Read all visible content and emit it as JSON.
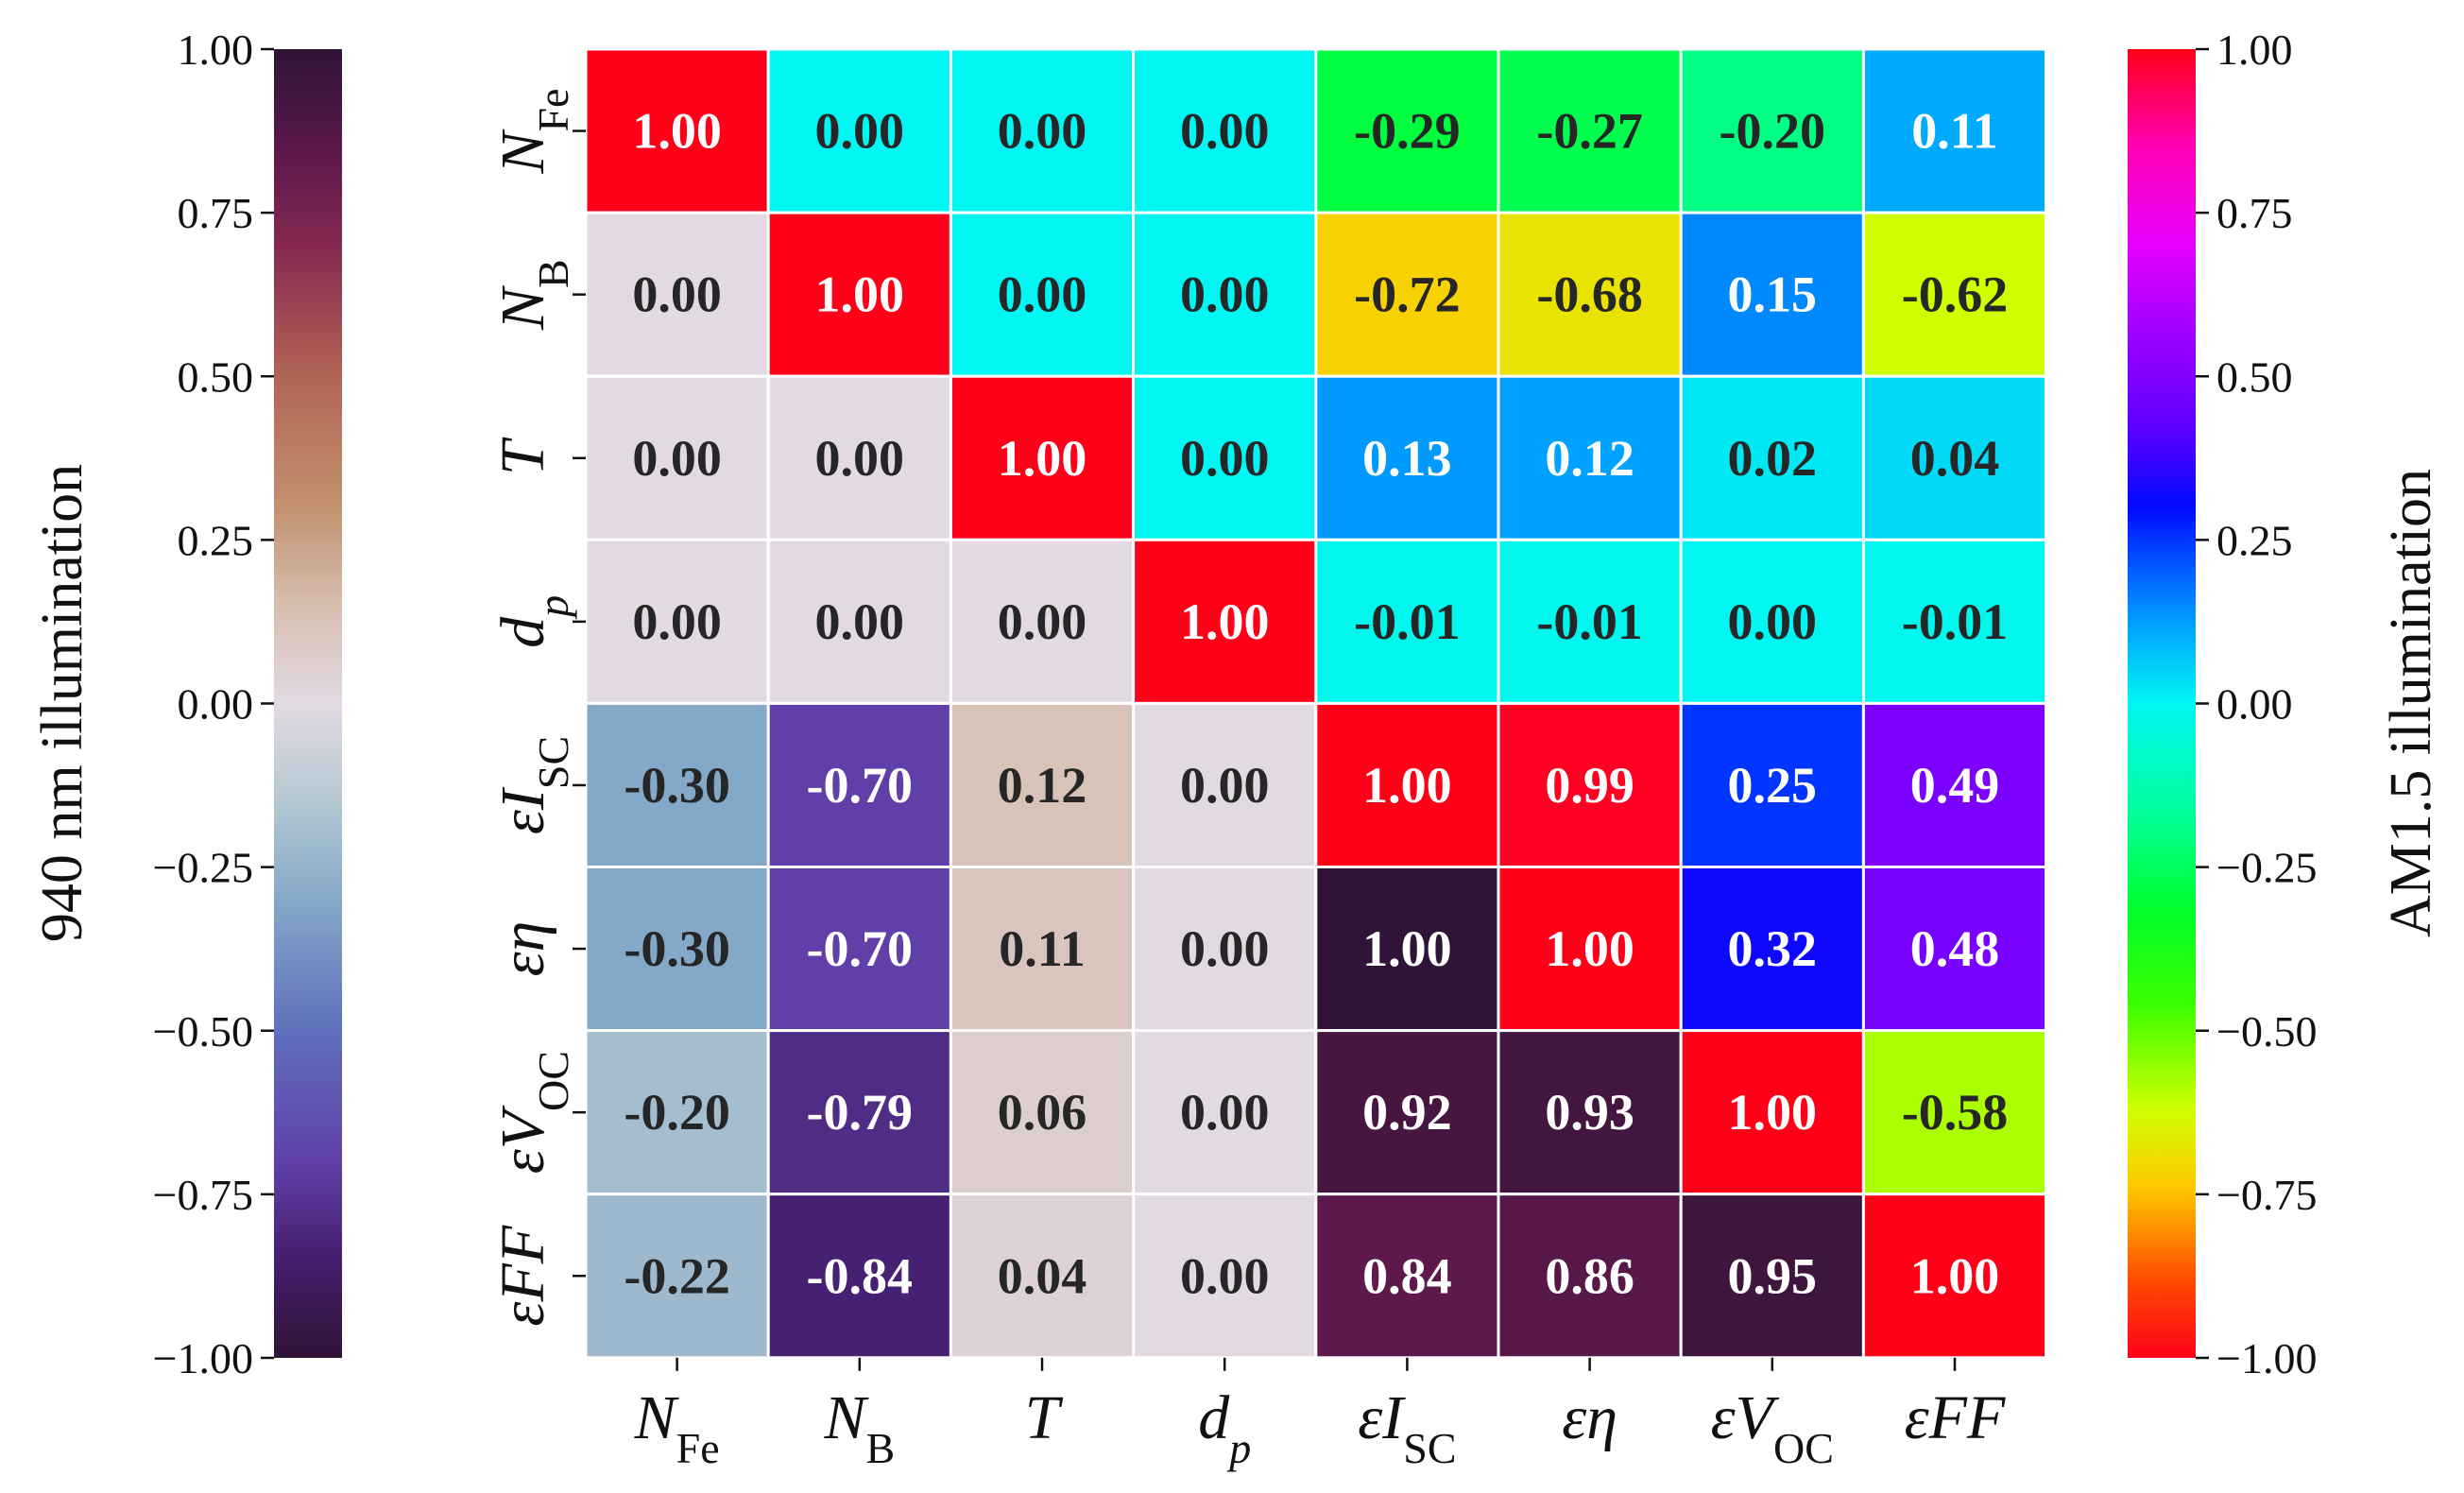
{
  "chart_data": {
    "type": "heatmap",
    "variables": [
      {
        "id": "NFe",
        "base": "N",
        "sub": "Fe",
        "prefix": ""
      },
      {
        "id": "NB",
        "base": "N",
        "sub": "B",
        "prefix": ""
      },
      {
        "id": "T",
        "base": "T",
        "sub": "",
        "prefix": ""
      },
      {
        "id": "dp",
        "base": "d",
        "sub": "p",
        "prefix": "",
        "sub_italic": true
      },
      {
        "id": "eIsc",
        "base": "I",
        "sub": "SC",
        "prefix": "ε"
      },
      {
        "id": "eEta",
        "base": "η",
        "sub": "",
        "prefix": "ε"
      },
      {
        "id": "eVoc",
        "base": "V",
        "sub": "OC",
        "prefix": "ε"
      },
      {
        "id": "eFF",
        "base": "FF",
        "sub": "",
        "prefix": "ε"
      }
    ],
    "values": [
      [
        1.0,
        0.0,
        0.0,
        0.0,
        -0.29,
        -0.27,
        -0.2,
        0.11
      ],
      [
        0.0,
        1.0,
        0.0,
        0.0,
        -0.72,
        -0.68,
        0.15,
        -0.62
      ],
      [
        0.0,
        0.0,
        1.0,
        0.0,
        0.13,
        0.12,
        0.02,
        0.04
      ],
      [
        0.0,
        0.0,
        0.0,
        1.0,
        -0.01,
        -0.01,
        0.0,
        -0.01
      ],
      [
        -0.3,
        -0.7,
        0.12,
        0.0,
        1.0,
        0.99,
        0.25,
        0.49
      ],
      [
        -0.3,
        -0.7,
        0.11,
        0.0,
        1.0,
        1.0,
        0.32,
        0.48
      ],
      [
        -0.2,
        -0.79,
        0.06,
        0.0,
        0.92,
        0.93,
        1.0,
        -0.58
      ],
      [
        -0.22,
        -0.84,
        0.04,
        0.0,
        0.84,
        0.86,
        0.95,
        1.0
      ]
    ],
    "labels": [
      [
        "1.00",
        "0.00",
        "0.00",
        "0.00",
        "-0.29",
        "-0.27",
        "-0.20",
        "0.11"
      ],
      [
        "0.00",
        "1.00",
        "0.00",
        "0.00",
        "-0.72",
        "-0.68",
        "0.15",
        "-0.62"
      ],
      [
        "0.00",
        "0.00",
        "1.00",
        "0.00",
        "0.13",
        "0.12",
        "0.02",
        "0.04"
      ],
      [
        "0.00",
        "0.00",
        "0.00",
        "1.00",
        "-0.01",
        "-0.01",
        "0.00",
        "-0.01"
      ],
      [
        "-0.30",
        "-0.70",
        "0.12",
        "0.00",
        "1.00",
        "0.99",
        "0.25",
        "0.49"
      ],
      [
        "-0.30",
        "-0.70",
        "0.11",
        "0.00",
        "1.00",
        "1.00",
        "0.32",
        "0.48"
      ],
      [
        "-0.20",
        "-0.79",
        "0.06",
        "0.00",
        "0.92",
        "0.93",
        "1.00",
        "-0.58"
      ],
      [
        "-0.22",
        "-0.84",
        "0.04",
        "0.00",
        "0.84",
        "0.86",
        "0.95",
        "1.00"
      ]
    ],
    "upper_triangle_colormap": "hsv",
    "lower_triangle_colormap": "twilight_shifted",
    "left_colorbar": {
      "label": "940 nm  illumination",
      "range": [
        -1.0,
        1.0
      ],
      "ticks": [
        "1.00",
        "0.75",
        "0.50",
        "0.25",
        "0.00",
        "−0.25",
        "−0.50",
        "−0.75",
        "−1.00"
      ]
    },
    "right_colorbar": {
      "label": "AM1.5  illumination",
      "range": [
        -1.0,
        1.0
      ],
      "ticks": [
        "1.00",
        "0.75",
        "0.50",
        "0.25",
        "0.00",
        "−0.25",
        "−0.50",
        "−0.75",
        "−1.00"
      ]
    },
    "diagonal_color": "#ff0022",
    "grid_line_color": "#ffffff"
  }
}
